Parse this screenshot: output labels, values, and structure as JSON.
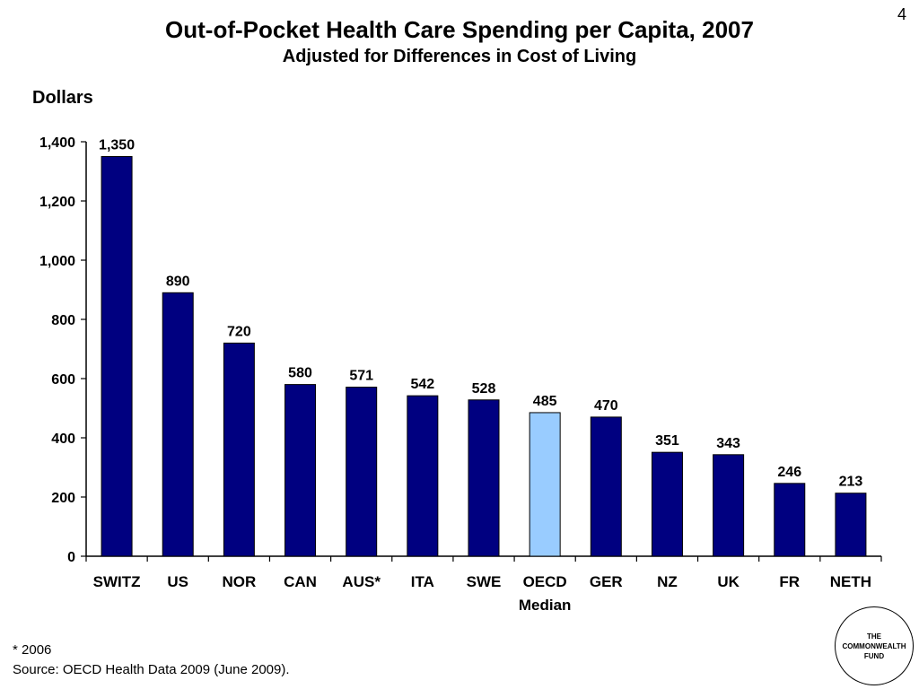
{
  "page_number": "4",
  "logo": {
    "line1": "THE",
    "line2": "COMMONWEALTH",
    "line3": "FUND"
  },
  "footnote": "* 2006",
  "source": "Source: OECD Health Data 2009 (June 2009).",
  "colors": {
    "bar": "#000080",
    "highlight": "#99ccff",
    "axis": "#000000"
  },
  "chart_data": {
    "type": "bar",
    "title": "Out-of-Pocket Health Care Spending per Capita, 2007",
    "subtitle": "Adjusted for Differences in Cost of Living",
    "ylabel": "Dollars",
    "xlabel": "",
    "ylim": [
      0,
      1400
    ],
    "yticks": [
      {
        "value": 0,
        "label": "0"
      },
      {
        "value": 200,
        "label": "200"
      },
      {
        "value": 400,
        "label": "400"
      },
      {
        "value": 600,
        "label": "600"
      },
      {
        "value": 800,
        "label": "800"
      },
      {
        "value": 1000,
        "label": "1,000"
      },
      {
        "value": 1200,
        "label": "1,200"
      },
      {
        "value": 1400,
        "label": "1,400"
      }
    ],
    "grid": false,
    "categories": [
      {
        "line1": "SWITZ",
        "line2": ""
      },
      {
        "line1": "US",
        "line2": ""
      },
      {
        "line1": "NOR",
        "line2": ""
      },
      {
        "line1": "CAN",
        "line2": ""
      },
      {
        "line1": "AUS*",
        "line2": ""
      },
      {
        "line1": "ITA",
        "line2": ""
      },
      {
        "line1": "SWE",
        "line2": ""
      },
      {
        "line1": "OECD",
        "line2": "Median"
      },
      {
        "line1": "GER",
        "line2": ""
      },
      {
        "line1": "NZ",
        "line2": ""
      },
      {
        "line1": "UK",
        "line2": ""
      },
      {
        "line1": "FR",
        "line2": ""
      },
      {
        "line1": "NETH",
        "line2": ""
      }
    ],
    "values": [
      1350,
      890,
      720,
      580,
      571,
      542,
      528,
      485,
      470,
      351,
      343,
      246,
      213
    ],
    "value_labels": [
      "1,350",
      "890",
      "720",
      "580",
      "571",
      "542",
      "528",
      "485",
      "470",
      "351",
      "343",
      "246",
      "213"
    ],
    "highlight_index": 7
  }
}
